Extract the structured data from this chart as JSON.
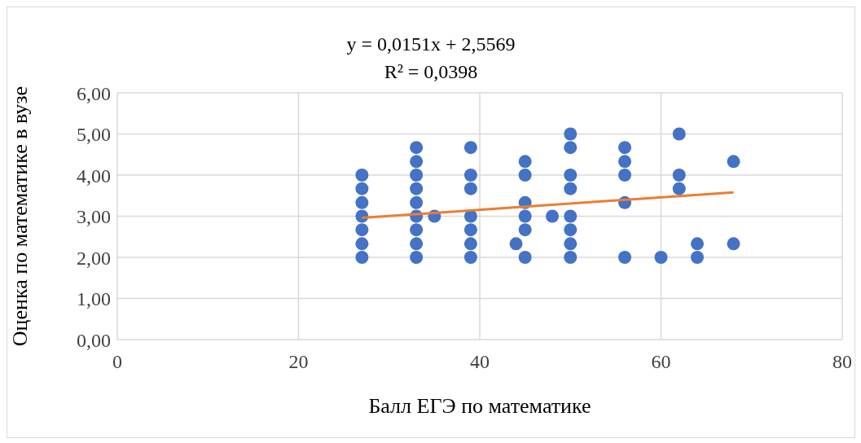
{
  "chart_data": {
    "type": "scatter",
    "xlabel": "Балл ЕГЭ по математике",
    "ylabel": "Оценка по математике  в вузе",
    "annotations": [
      "y = 0,0151x  + 2,5569",
      "R² = 0,0398"
    ],
    "xlim": [
      0,
      80
    ],
    "xticks": [
      0,
      20,
      40,
      60,
      80
    ],
    "ylim": [
      0,
      6
    ],
    "yticks": [
      {
        "value": 0,
        "label": "0,00"
      },
      {
        "value": 1,
        "label": "1,00"
      },
      {
        "value": 2,
        "label": "2,00"
      },
      {
        "value": 3,
        "label": "3,00"
      },
      {
        "value": 4,
        "label": "4,00"
      },
      {
        "value": 5,
        "label": "5,00"
      },
      {
        "value": 6,
        "label": "6,00"
      }
    ],
    "grid": true,
    "series": [
      {
        "marker": "circle",
        "color": "#4472c4",
        "x": [
          27,
          27,
          27,
          27,
          27,
          27,
          27,
          33,
          33,
          33,
          33,
          33,
          33,
          33,
          33,
          33,
          35,
          39,
          39,
          39,
          39,
          39,
          39,
          39,
          44,
          45,
          45,
          45,
          45,
          45,
          45,
          48,
          50,
          50,
          50,
          50,
          50,
          50,
          50,
          50,
          56,
          56,
          56,
          56,
          56,
          60,
          62,
          62,
          62,
          64,
          64,
          68,
          68
        ],
        "values": [
          2,
          2.33,
          2.67,
          3,
          3.33,
          3.67,
          4,
          2,
          2.33,
          2.67,
          3,
          3.33,
          3.67,
          4,
          4.33,
          4.67,
          3,
          2,
          2.33,
          2.67,
          3,
          3.67,
          4,
          4.67,
          2.33,
          2,
          2.67,
          3,
          3.33,
          4,
          4.33,
          3,
          2,
          2.33,
          2.67,
          3,
          3.67,
          4,
          4.67,
          5,
          2,
          3.33,
          4,
          4.33,
          4.67,
          2,
          3.67,
          4,
          5,
          2,
          2.33,
          2.33,
          4.33
        ]
      },
      {
        "type": "line",
        "color": "#ed7d31",
        "x": [
          27,
          68
        ],
        "values": [
          2.96,
          3.58
        ]
      }
    ]
  }
}
